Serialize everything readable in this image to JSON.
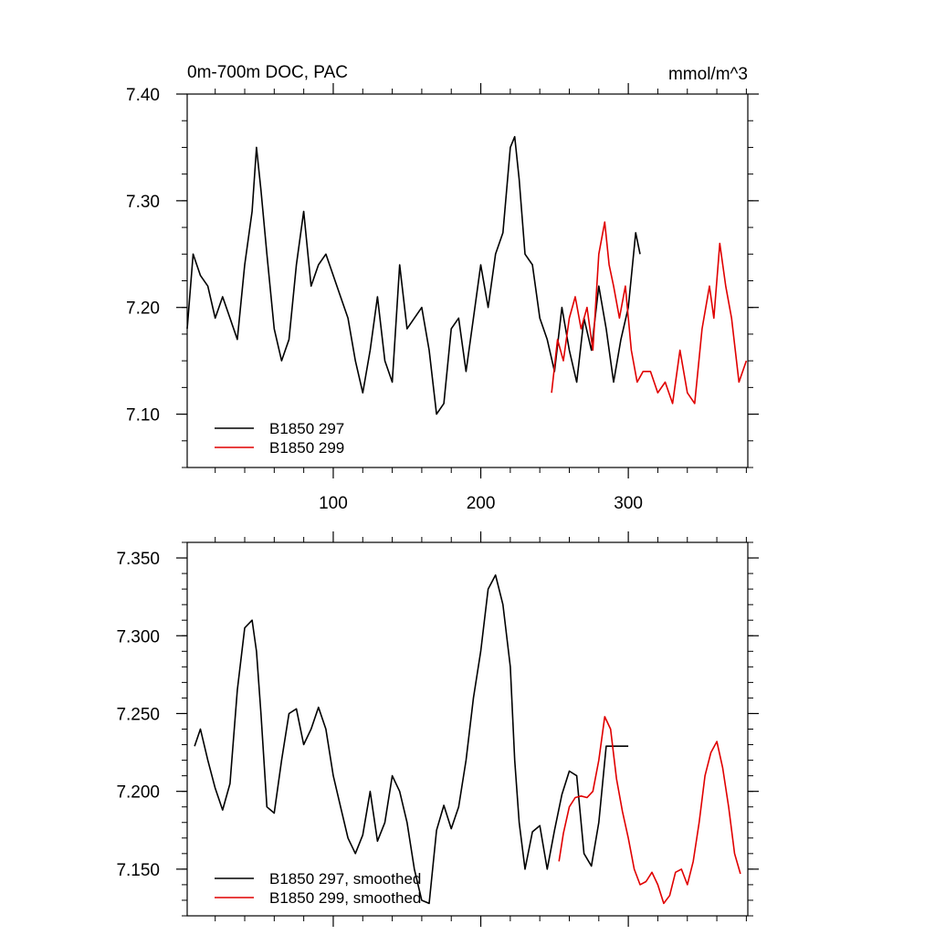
{
  "colors": {
    "series1": "#000000",
    "series2": "#e00000",
    "axes": "#000000",
    "background": "#ffffff"
  },
  "chart_data": [
    {
      "type": "line",
      "title": "0m-700m DOC, PAC",
      "units": "mmol/m^3",
      "xlabel": "",
      "ylabel": "",
      "xlim": [
        1,
        381
      ],
      "ylim": [
        7.05,
        7.4
      ],
      "xticks": [
        100,
        200,
        300
      ],
      "xtick_labels": [
        "100",
        "200",
        "300"
      ],
      "yticks": [
        7.1,
        7.2,
        7.3,
        7.4
      ],
      "ytick_labels": [
        "7.10",
        "7.20",
        "7.30",
        "7.40"
      ],
      "grid": false,
      "legend_position": "bottom-left",
      "series": [
        {
          "name": "B1850 297",
          "color": "#000000",
          "x": [
            1,
            5,
            10,
            15,
            20,
            25,
            30,
            35,
            40,
            45,
            48,
            51,
            55,
            60,
            65,
            70,
            75,
            80,
            85,
            90,
            95,
            100,
            105,
            110,
            115,
            120,
            125,
            130,
            135,
            140,
            145,
            150,
            155,
            160,
            165,
            170,
            175,
            180,
            185,
            190,
            195,
            200,
            205,
            210,
            215,
            220,
            223,
            226,
            230,
            235,
            240,
            245,
            250,
            255,
            260,
            265,
            270,
            275,
            280,
            285,
            290,
            295,
            300,
            305,
            308
          ],
          "y": [
            7.18,
            7.25,
            7.23,
            7.22,
            7.19,
            7.21,
            7.19,
            7.17,
            7.24,
            7.29,
            7.35,
            7.31,
            7.25,
            7.18,
            7.15,
            7.17,
            7.24,
            7.29,
            7.22,
            7.24,
            7.25,
            7.23,
            7.21,
            7.19,
            7.15,
            7.12,
            7.16,
            7.21,
            7.15,
            7.13,
            7.24,
            7.18,
            7.19,
            7.2,
            7.16,
            7.1,
            7.11,
            7.18,
            7.19,
            7.14,
            7.19,
            7.24,
            7.2,
            7.25,
            7.27,
            7.35,
            7.36,
            7.32,
            7.25,
            7.24,
            7.19,
            7.17,
            7.14,
            7.2,
            7.16,
            7.13,
            7.19,
            7.16,
            7.22,
            7.18,
            7.13,
            7.17,
            7.2,
            7.27,
            7.25
          ]
        },
        {
          "name": "B1850 299",
          "color": "#e00000",
          "x": [
            248,
            252,
            256,
            260,
            264,
            268,
            272,
            276,
            280,
            284,
            287,
            290,
            294,
            298,
            302,
            306,
            310,
            315,
            320,
            325,
            330,
            335,
            340,
            345,
            350,
            355,
            358,
            362,
            366,
            370,
            375,
            380
          ],
          "y": [
            7.12,
            7.17,
            7.15,
            7.19,
            7.21,
            7.18,
            7.2,
            7.16,
            7.25,
            7.28,
            7.24,
            7.22,
            7.19,
            7.22,
            7.16,
            7.13,
            7.14,
            7.14,
            7.12,
            7.13,
            7.11,
            7.16,
            7.12,
            7.11,
            7.18,
            7.22,
            7.19,
            7.26,
            7.22,
            7.19,
            7.13,
            7.15
          ]
        }
      ]
    },
    {
      "type": "line",
      "title": "",
      "xlabel": "",
      "ylabel": "",
      "xlim": [
        1,
        381
      ],
      "ylim": [
        7.12,
        7.36
      ],
      "xticks": [
        100,
        200,
        300
      ],
      "yticks": [
        7.15,
        7.2,
        7.25,
        7.3,
        7.35
      ],
      "ytick_labels": [
        "7.150",
        "7.200",
        "7.250",
        "7.300",
        "7.350"
      ],
      "grid": false,
      "legend_position": "bottom-left",
      "series": [
        {
          "name": "B1850 297, smoothed",
          "color": "#000000",
          "x": [
            6,
            10,
            15,
            20,
            25,
            30,
            35,
            40,
            45,
            48,
            51,
            55,
            60,
            65,
            70,
            75,
            80,
            85,
            90,
            95,
            100,
            105,
            110,
            115,
            120,
            125,
            130,
            135,
            140,
            145,
            150,
            155,
            160,
            165,
            170,
            175,
            180,
            185,
            190,
            195,
            200,
            205,
            210,
            215,
            220,
            223,
            226,
            230,
            235,
            240,
            245,
            250,
            255,
            260,
            265,
            270,
            275,
            280,
            285,
            290,
            295,
            300
          ],
          "y": [
            7.229,
            7.24,
            7.22,
            7.202,
            7.188,
            7.205,
            7.265,
            7.305,
            7.31,
            7.29,
            7.25,
            7.19,
            7.186,
            7.22,
            7.25,
            7.253,
            7.23,
            7.24,
            7.254,
            7.24,
            7.21,
            7.19,
            7.17,
            7.16,
            7.172,
            7.2,
            7.168,
            7.18,
            7.21,
            7.2,
            7.18,
            7.15,
            7.13,
            7.128,
            7.175,
            7.191,
            7.176,
            7.19,
            7.22,
            7.26,
            7.29,
            7.33,
            7.339,
            7.32,
            7.28,
            7.22,
            7.18,
            7.15,
            7.174,
            7.178,
            7.15,
            7.175,
            7.198,
            7.213,
            7.21,
            7.16,
            7.152,
            7.18,
            7.229,
            7.229,
            7.229,
            7.229
          ]
        },
        {
          "name": "B1850 299, smoothed",
          "color": "#e00000",
          "x": [
            253,
            256,
            260,
            264,
            268,
            272,
            276,
            280,
            284,
            288,
            292,
            296,
            300,
            304,
            308,
            312,
            316,
            320,
            324,
            328,
            332,
            336,
            340,
            344,
            348,
            352,
            356,
            360,
            364,
            368,
            372,
            376
          ],
          "y": [
            7.155,
            7.173,
            7.19,
            7.196,
            7.197,
            7.196,
            7.2,
            7.22,
            7.248,
            7.24,
            7.208,
            7.187,
            7.17,
            7.15,
            7.14,
            7.142,
            7.148,
            7.14,
            7.128,
            7.133,
            7.148,
            7.15,
            7.14,
            7.155,
            7.18,
            7.21,
            7.225,
            7.232,
            7.215,
            7.19,
            7.16,
            7.147
          ]
        }
      ]
    }
  ]
}
